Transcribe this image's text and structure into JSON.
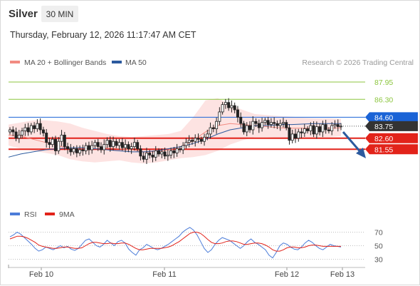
{
  "header": {
    "instrument": "Silver",
    "timeframe": "30 MIN",
    "datetime": "Thursday, February 12, 2026 11:17:47 AM CET"
  },
  "legend": {
    "ma20_label": "MA 20 + Bollinger Bands",
    "ma50_label": "MA 50",
    "copyright": "Research © 2026 Trading Central",
    "rsi_label": "RSI",
    "rsi_ma_label": "9MA"
  },
  "colors": {
    "ma20": "#f28b82",
    "ma50": "#2c5a9e",
    "bb_fill": "#fde0df",
    "resistance_green": "#8cc63f",
    "pivot_blue": "#1a63d6",
    "current_dark": "#333333",
    "support_red": "#e2231a",
    "candle": "#222222",
    "rsi": "#4c7dd9",
    "rsi_ma": "#e2231a",
    "arrow": "#2c5a9e"
  },
  "chart_data": [
    {
      "type": "candlestick",
      "title": "Silver",
      "timeframe": "30 MIN",
      "ylim": [
        77.7,
        89.1
      ],
      "x_ticks": [
        "Feb 10",
        "Feb 11",
        "Feb 12",
        "Feb 13"
      ],
      "levels": [
        {
          "value": 87.95,
          "label": "87.95",
          "kind": "resistance"
        },
        {
          "value": 86.3,
          "label": "86.30",
          "kind": "resistance"
        },
        {
          "value": 84.6,
          "label": "84.60",
          "kind": "pivot"
        },
        {
          "value": 83.75,
          "label": "83.75",
          "kind": "last"
        },
        {
          "value": 82.6,
          "label": "82.60",
          "kind": "support"
        },
        {
          "value": 81.55,
          "label": "81.55",
          "kind": "support"
        }
      ],
      "close_series": [
        83.4,
        83.2,
        82.6,
        82.9,
        83.3,
        83.6,
        83.2,
        83.8,
        83.5,
        84.0,
        83.4,
        83.1,
        82.2,
        82.0,
        82.5,
        81.4,
        82.3,
        82.9,
        81.8,
        81.6,
        81.3,
        81.6,
        81.2,
        81.5,
        81.4,
        81.9,
        81.5,
        81.9,
        82.2,
        81.8,
        81.5,
        82.0,
        82.4,
        81.8,
        82.3,
        81.9,
        82.2,
        81.7,
        82.0,
        81.6,
        81.8,
        82.2,
        81.6,
        80.9,
        80.6,
        81.2,
        81.0,
        80.8,
        81.4,
        81.1,
        81.3,
        80.9,
        81.0,
        81.4,
        81.2,
        81.6,
        81.5,
        81.9,
        82.2,
        82.4,
        82.3,
        82.6,
        82.5,
        82.3,
        82.7,
        83.0,
        83.6,
        83.5,
        84.2,
        85.1,
        85.8,
        86.0,
        85.5,
        85.7,
        85.3,
        84.6,
        84.0,
        83.2,
        83.8,
        83.4,
        84.2,
        84.0,
        83.6,
        84.1,
        84.3,
        83.9,
        84.1,
        84.0,
        83.8,
        84.0,
        84.1,
        83.6,
        82.4,
        83.0,
        82.6,
        83.2,
        83.1,
        83.5,
        83.3,
        83.8,
        83.0,
        83.7,
        83.2,
        83.9,
        83.4,
        83.3,
        83.8,
        83.9,
        83.7,
        83.75
      ],
      "bollinger": {
        "upper": [
          83.9,
          84.1,
          84.3,
          84.3,
          84.2,
          84.0,
          83.6,
          83.3,
          83.0,
          82.8,
          82.7,
          82.8,
          82.9,
          83.0,
          83.3,
          84.6,
          86.2,
          86.4,
          85.8,
          85.3,
          84.9,
          84.8,
          84.7,
          84.65,
          84.55,
          84.5,
          84.5,
          84.45
        ],
        "lower": [
          81.9,
          81.6,
          81.4,
          81.2,
          81.0,
          80.6,
          80.4,
          80.3,
          80.4,
          80.5,
          80.3,
          80.2,
          80.3,
          80.5,
          80.7,
          80.8,
          81.0,
          81.4,
          82.0,
          82.4,
          82.7,
          82.7,
          82.6,
          82.6,
          82.6,
          82.7,
          82.7,
          82.8
        ]
      },
      "ma20": [
        82.9,
        82.8,
        82.5,
        82.2,
        81.9,
        81.6,
        81.5,
        81.6,
        81.7,
        81.6,
        81.5,
        81.3,
        81.3,
        81.5,
        81.8,
        82.4,
        83.2,
        83.8,
        84.0,
        83.9,
        83.8,
        83.7,
        83.6,
        83.55,
        83.55,
        83.55,
        83.55,
        83.6
      ],
      "ma50": [
        80.8,
        81.1,
        81.3,
        81.5,
        81.6,
        81.7,
        81.7,
        81.6,
        81.5,
        81.4,
        81.3,
        81.3,
        81.4,
        81.6,
        81.8,
        82.1,
        82.5,
        83.0,
        83.4,
        83.6,
        83.8,
        83.8,
        83.9,
        83.9,
        83.95,
        84.0,
        84.0,
        84.0
      ]
    },
    {
      "type": "line",
      "title": "RSI",
      "ylim": [
        20,
        80
      ],
      "y_ticks": [
        "70",
        "50",
        "30"
      ],
      "series": [
        {
          "name": "RSI",
          "values": [
            63,
            66,
            70,
            67,
            62,
            57,
            52,
            46,
            42,
            44,
            48,
            46,
            44,
            47,
            50,
            47,
            49,
            45,
            43,
            46,
            52,
            58,
            60,
            55,
            50,
            48,
            52,
            58,
            54,
            50,
            56,
            58,
            54,
            45,
            40,
            36,
            44,
            47,
            52,
            49,
            46,
            44,
            46,
            49,
            52,
            56,
            60,
            64,
            70,
            74,
            77,
            73,
            66,
            56,
            46,
            40,
            44,
            52,
            58,
            62,
            60,
            58,
            54,
            50,
            46,
            50,
            56,
            60,
            55,
            52,
            48,
            44,
            36,
            32,
            40,
            50,
            54,
            52,
            48,
            45,
            44,
            48,
            54,
            58,
            55,
            50,
            46,
            44,
            48,
            52,
            50,
            49,
            48
          ]
        },
        {
          "name": "9MA",
          "values": [
            60,
            62,
            64,
            64,
            63,
            61,
            58,
            55,
            51,
            49,
            48,
            47,
            46,
            46,
            47,
            48,
            48,
            47,
            46,
            46,
            47,
            50,
            53,
            55,
            55,
            54,
            53,
            53,
            54,
            53,
            53,
            54,
            54,
            52,
            49,
            46,
            44,
            44,
            45,
            46,
            46,
            46,
            46,
            47,
            48,
            50,
            53,
            56,
            60,
            64,
            68,
            70,
            70,
            68,
            64,
            59,
            55,
            53,
            53,
            54,
            56,
            57,
            57,
            56,
            54,
            52,
            52,
            53,
            54,
            54,
            53,
            51,
            48,
            44,
            42,
            42,
            44,
            47,
            48,
            48,
            47,
            47,
            48,
            50,
            51,
            51,
            50,
            49,
            49,
            49,
            49,
            49,
            49
          ]
        }
      ]
    }
  ]
}
